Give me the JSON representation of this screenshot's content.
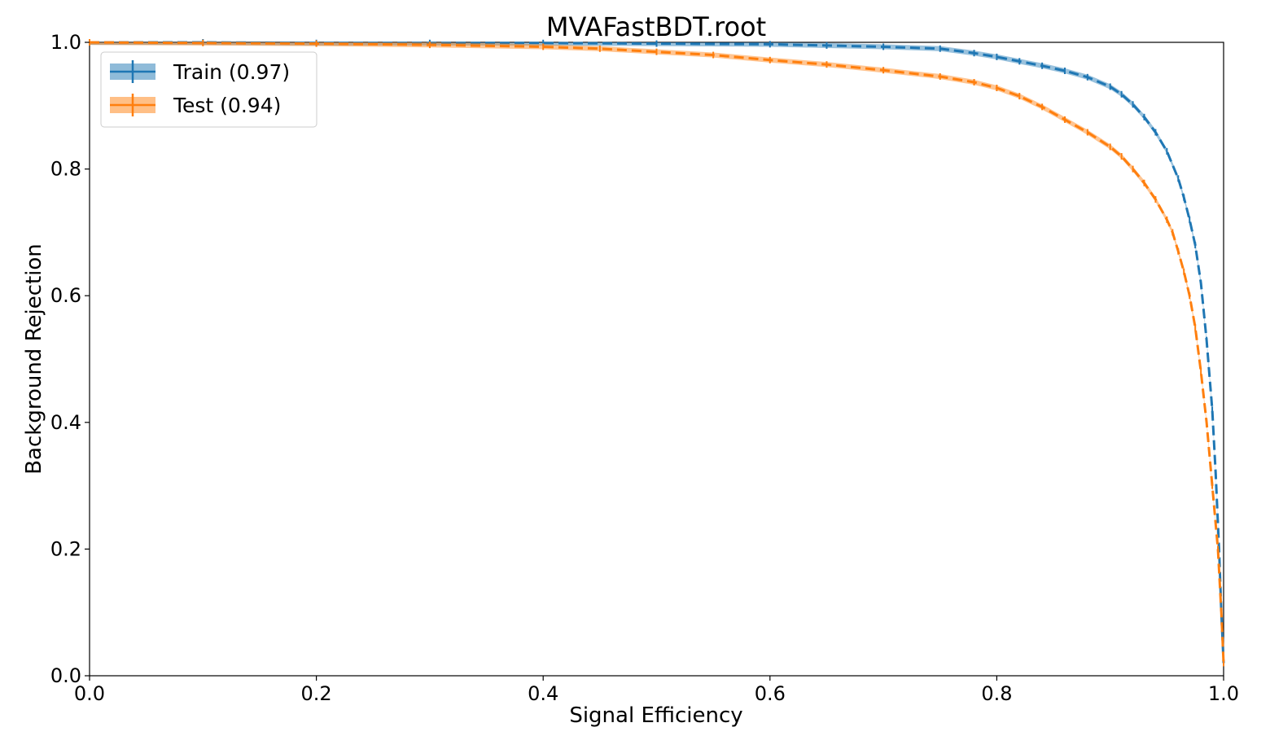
{
  "chart_data": {
    "type": "line",
    "title": "MVAFastBDT.root",
    "xlabel": "Signal Efficiency",
    "ylabel": "Background Rejection",
    "xlim": [
      0.0,
      1.0
    ],
    "ylim": [
      0.0,
      1.0
    ],
    "xticks": [
      "0.0",
      "0.2",
      "0.4",
      "0.6",
      "0.8",
      "1.0"
    ],
    "yticks": [
      "0.0",
      "0.2",
      "0.4",
      "0.6",
      "0.8",
      "1.0"
    ],
    "grid": false,
    "legend_position": "upper-left",
    "line_style": "dashed-with-error-bars",
    "series": [
      {
        "name": "Train (0.97)",
        "color": "#1f77b4",
        "x": [
          0.0,
          0.1,
          0.2,
          0.3,
          0.4,
          0.5,
          0.6,
          0.65,
          0.7,
          0.75,
          0.78,
          0.8,
          0.82,
          0.84,
          0.86,
          0.88,
          0.9,
          0.91,
          0.92,
          0.93,
          0.94,
          0.95,
          0.96,
          0.965,
          0.97,
          0.975,
          0.98,
          0.985,
          0.99,
          0.993,
          0.996,
          0.998,
          1.0
        ],
        "values": [
          1.0,
          1.0,
          0.999,
          0.999,
          0.999,
          0.998,
          0.997,
          0.995,
          0.993,
          0.99,
          0.983,
          0.977,
          0.97,
          0.963,
          0.955,
          0.945,
          0.93,
          0.918,
          0.902,
          0.882,
          0.858,
          0.828,
          0.785,
          0.755,
          0.72,
          0.68,
          0.62,
          0.53,
          0.42,
          0.32,
          0.2,
          0.1,
          0.02
        ]
      },
      {
        "name": "Test (0.94)",
        "color": "#ff7f0e",
        "x": [
          0.0,
          0.1,
          0.2,
          0.3,
          0.4,
          0.45,
          0.5,
          0.55,
          0.6,
          0.65,
          0.7,
          0.75,
          0.78,
          0.8,
          0.82,
          0.84,
          0.86,
          0.88,
          0.9,
          0.91,
          0.92,
          0.93,
          0.94,
          0.95,
          0.955,
          0.96,
          0.965,
          0.97,
          0.975,
          0.98,
          0.985,
          0.99,
          0.995,
          0.998,
          1.0
        ],
        "values": [
          1.0,
          0.999,
          0.998,
          0.996,
          0.993,
          0.99,
          0.985,
          0.98,
          0.972,
          0.965,
          0.956,
          0.946,
          0.937,
          0.928,
          0.915,
          0.898,
          0.878,
          0.858,
          0.835,
          0.82,
          0.8,
          0.778,
          0.752,
          0.72,
          0.7,
          0.67,
          0.638,
          0.6,
          0.55,
          0.48,
          0.4,
          0.3,
          0.2,
          0.1,
          0.02
        ]
      }
    ]
  }
}
